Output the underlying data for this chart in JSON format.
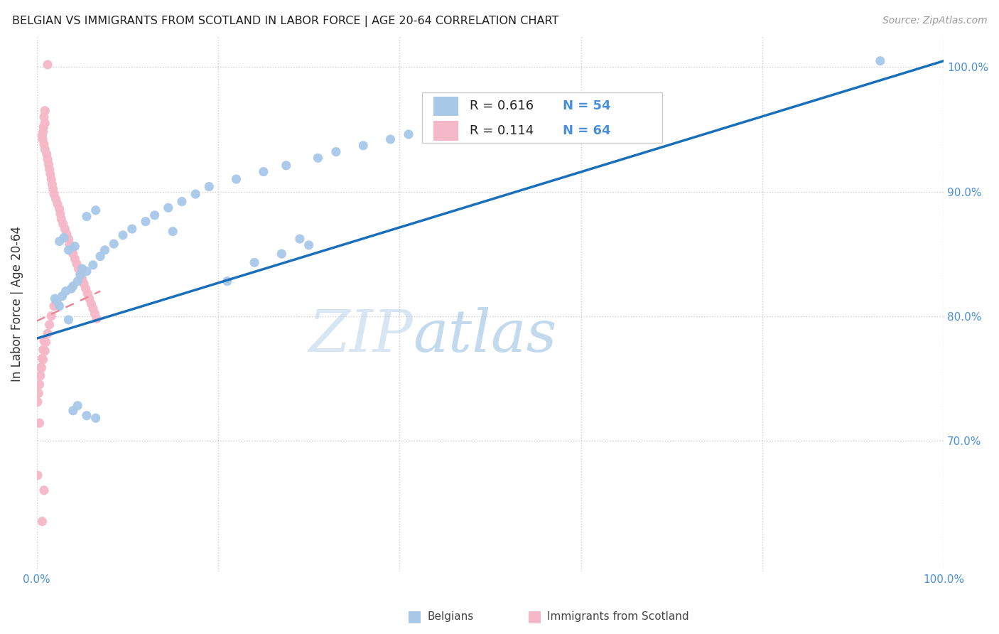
{
  "title": "BELGIAN VS IMMIGRANTS FROM SCOTLAND IN LABOR FORCE | AGE 20-64 CORRELATION CHART",
  "source": "Source: ZipAtlas.com",
  "ylabel": "In Labor Force | Age 20-64",
  "xlim": [
    0.0,
    1.0
  ],
  "ylim": [
    0.595,
    1.025
  ],
  "r_belgian": 0.616,
  "n_belgian": 54,
  "r_scotland": 0.114,
  "n_scotland": 64,
  "blue_color": "#a8c8e8",
  "pink_color": "#f5b8c8",
  "blue_line_color": "#1a6fbb",
  "pink_line_color": "#e88898",
  "tick_color": "#4a90d9",
  "watermark_color": "#c8dcf0",
  "belgian_x": [
    0.93,
    0.035,
    0.05,
    0.02,
    0.025,
    0.022,
    0.028,
    0.032,
    0.038,
    0.04,
    0.045,
    0.048,
    0.055,
    0.062,
    0.07,
    0.075,
    0.085,
    0.095,
    0.105,
    0.12,
    0.13,
    0.145,
    0.16,
    0.175,
    0.19,
    0.22,
    0.25,
    0.275,
    0.31,
    0.33,
    0.36,
    0.39,
    0.41,
    0.44,
    0.47,
    0.5,
    0.54,
    0.58,
    0.035,
    0.042,
    0.025,
    0.03,
    0.055,
    0.065,
    0.15,
    0.21,
    0.24,
    0.27,
    0.3,
    0.29,
    0.065,
    0.055,
    0.04,
    0.045
  ],
  "belgian_y": [
    1.005,
    0.797,
    0.838,
    0.814,
    0.808,
    0.812,
    0.816,
    0.82,
    0.822,
    0.824,
    0.828,
    0.833,
    0.836,
    0.841,
    0.848,
    0.853,
    0.858,
    0.865,
    0.87,
    0.876,
    0.881,
    0.887,
    0.892,
    0.898,
    0.904,
    0.91,
    0.916,
    0.921,
    0.927,
    0.932,
    0.937,
    0.942,
    0.946,
    0.95,
    0.954,
    0.958,
    0.963,
    0.967,
    0.853,
    0.856,
    0.86,
    0.863,
    0.88,
    0.885,
    0.868,
    0.828,
    0.843,
    0.85,
    0.857,
    0.862,
    0.718,
    0.72,
    0.724,
    0.728
  ],
  "scotland_x": [
    0.012,
    0.009,
    0.008,
    0.009,
    0.0075,
    0.007,
    0.006,
    0.0065,
    0.008,
    0.009,
    0.011,
    0.012,
    0.013,
    0.014,
    0.015,
    0.016,
    0.017,
    0.018,
    0.019,
    0.021,
    0.023,
    0.025,
    0.026,
    0.027,
    0.029,
    0.031,
    0.033,
    0.035,
    0.036,
    0.038,
    0.04,
    0.042,
    0.044,
    0.046,
    0.048,
    0.05,
    0.052,
    0.054,
    0.056,
    0.058,
    0.06,
    0.062,
    0.064,
    0.066,
    0.008,
    0.007,
    0.006,
    0.005,
    0.004,
    0.003,
    0.002,
    0.001,
    0.019,
    0.016,
    0.014,
    0.012,
    0.01,
    0.009,
    0.007,
    0.005,
    0.003,
    0.001,
    0.008,
    0.006
  ],
  "scotland_y": [
    1.002,
    0.965,
    0.96,
    0.955,
    0.952,
    0.948,
    0.945,
    0.942,
    0.938,
    0.934,
    0.93,
    0.926,
    0.922,
    0.918,
    0.914,
    0.91,
    0.906,
    0.902,
    0.898,
    0.894,
    0.89,
    0.886,
    0.882,
    0.878,
    0.874,
    0.87,
    0.866,
    0.862,
    0.858,
    0.854,
    0.85,
    0.846,
    0.842,
    0.838,
    0.834,
    0.83,
    0.826,
    0.822,
    0.818,
    0.814,
    0.81,
    0.806,
    0.802,
    0.798,
    0.78,
    0.773,
    0.766,
    0.759,
    0.752,
    0.745,
    0.738,
    0.731,
    0.808,
    0.8,
    0.793,
    0.786,
    0.779,
    0.772,
    0.765,
    0.758,
    0.714,
    0.672,
    0.66,
    0.635
  ],
  "blue_line_x": [
    0.0,
    1.0
  ],
  "blue_line_y": [
    0.782,
    1.005
  ],
  "pink_line_x": [
    0.0,
    0.07
  ],
  "pink_line_y": [
    0.796,
    0.82
  ]
}
